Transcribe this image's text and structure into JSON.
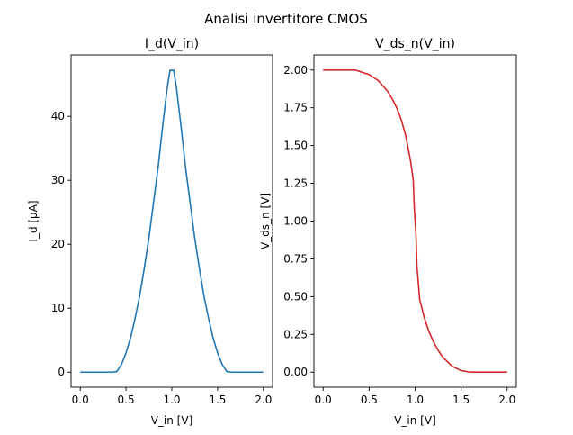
{
  "figure": {
    "suptitle": "Analisi invertitore CMOS"
  },
  "chart_data": [
    {
      "type": "line",
      "title": "I_d(V_in)",
      "xlabel": "V_in [V]",
      "ylabel": "I_d [µA]",
      "xlim": [
        -0.1,
        2.1
      ],
      "ylim": [
        -2.36,
        49.6
      ],
      "xticks": [
        0.0,
        0.5,
        1.0,
        1.5,
        2.0
      ],
      "xtick_labels": [
        "0.0",
        "0.5",
        "1.0",
        "1.5",
        "2.0"
      ],
      "yticks": [
        0,
        10,
        20,
        30,
        40
      ],
      "ytick_labels": [
        "0",
        "10",
        "20",
        "30",
        "40"
      ],
      "grid": false,
      "series": [
        {
          "color": "#1f77b4",
          "x": [
            0.0,
            0.1,
            0.2,
            0.3,
            0.35,
            0.4,
            0.45,
            0.5,
            0.55,
            0.6,
            0.65,
            0.7,
            0.75,
            0.8,
            0.85,
            0.9,
            0.95,
            0.98,
            1.0,
            1.02,
            1.05,
            1.1,
            1.15,
            1.2,
            1.25,
            1.3,
            1.35,
            1.4,
            1.45,
            1.5,
            1.55,
            1.6,
            1.65,
            1.7,
            1.8,
            1.9,
            2.0
          ],
          "y": [
            0,
            0,
            0,
            0,
            0,
            0.1,
            1.2,
            3.0,
            5.4,
            8.5,
            12.0,
            16.3,
            21.0,
            26.5,
            32.0,
            38.5,
            44.5,
            47.2,
            47.2,
            47.2,
            44.5,
            38.5,
            32.0,
            26.5,
            21.0,
            16.3,
            12.0,
            8.5,
            5.4,
            3.0,
            1.2,
            0.1,
            0,
            0,
            0,
            0,
            0
          ]
        }
      ]
    },
    {
      "type": "line",
      "title": "V_ds_n(V_in)",
      "xlabel": "V_in [V]",
      "ylabel": "V_ds_n [V]",
      "xlim": [
        -0.1,
        2.1
      ],
      "ylim": [
        -0.1,
        2.1
      ],
      "xticks": [
        0.0,
        0.5,
        1.0,
        1.5,
        2.0
      ],
      "xtick_labels": [
        "0.0",
        "0.5",
        "1.0",
        "1.5",
        "2.0"
      ],
      "yticks": [
        0.0,
        0.25,
        0.5,
        0.75,
        1.0,
        1.25,
        1.5,
        1.75,
        2.0
      ],
      "ytick_labels": [
        "0.00",
        "0.25",
        "0.50",
        "0.75",
        "1.00",
        "1.25",
        "1.50",
        "1.75",
        "2.00"
      ],
      "grid": false,
      "series": [
        {
          "color": "#d62728",
          "x": [
            0.0,
            0.1,
            0.2,
            0.3,
            0.35,
            0.4,
            0.5,
            0.6,
            0.7,
            0.75,
            0.8,
            0.85,
            0.9,
            0.95,
            0.98,
            0.99,
            1.0,
            1.01,
            1.02,
            1.05,
            1.1,
            1.15,
            1.2,
            1.25,
            1.3,
            1.4,
            1.5,
            1.6,
            1.65,
            1.7,
            1.8,
            1.9,
            2.0
          ],
          "y": [
            2.0,
            2.0,
            2.0,
            2.0,
            2.0,
            1.99,
            1.97,
            1.93,
            1.86,
            1.81,
            1.75,
            1.67,
            1.56,
            1.4,
            1.27,
            1.1,
            1.0,
            0.9,
            0.7,
            0.48,
            0.36,
            0.27,
            0.2,
            0.145,
            0.1,
            0.04,
            0.01,
            0.0,
            0.0,
            0.0,
            0.0,
            0.0,
            0.0
          ]
        }
      ]
    }
  ]
}
